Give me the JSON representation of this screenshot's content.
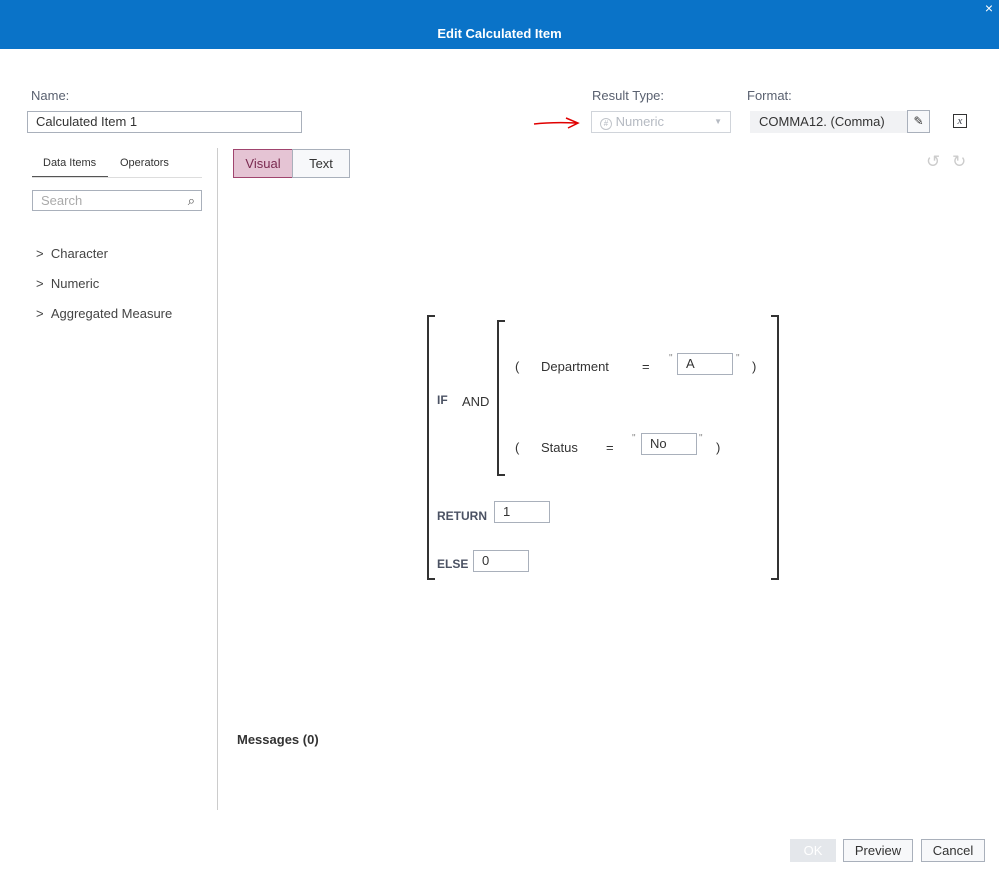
{
  "dialog": {
    "title": "Edit Calculated Item",
    "close_icon": "×"
  },
  "name": {
    "label": "Name:",
    "value": "Calculated Item 1"
  },
  "result_type": {
    "label": "Result Type:",
    "value": "Numeric",
    "icon": "#"
  },
  "format": {
    "label": "Format:",
    "value": "COMMA12. (Comma)"
  },
  "left_tabs": [
    "Data Items",
    "Operators"
  ],
  "search": {
    "placeholder": "Search"
  },
  "tree": [
    "Character",
    "Numeric",
    "Aggregated Measure"
  ],
  "mode_tabs": {
    "visual": "Visual",
    "text": "Text",
    "active": "Visual"
  },
  "expression": {
    "if": "IF",
    "and": "AND",
    "cond1": {
      "open": "(",
      "field": "Department",
      "op": "=",
      "value": "A",
      "close": ")"
    },
    "cond2": {
      "open": "(",
      "field": "Status",
      "op": "=",
      "value": "No",
      "close": ")"
    },
    "return": "RETURN",
    "return_value": "1",
    "else": "ELSE",
    "else_value": "0",
    "quote": "\""
  },
  "messages": "Messages (0)",
  "footer": {
    "ok": "OK",
    "preview": "Preview",
    "cancel": "Cancel"
  },
  "colors": {
    "header": "#0a73c8",
    "active_tab": "#e5c4d4",
    "annotation_arrow": "#e00000"
  }
}
